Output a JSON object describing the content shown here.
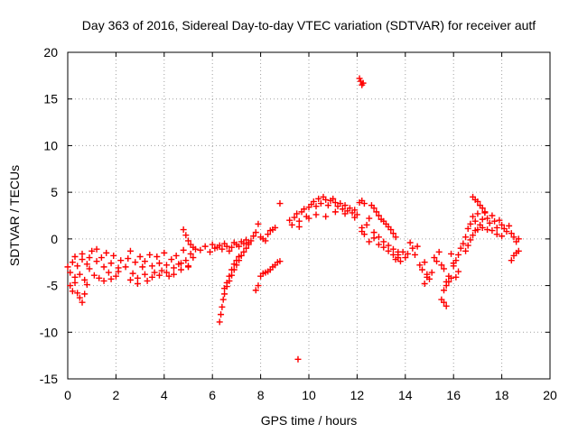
{
  "chart_data": {
    "type": "scatter",
    "title": "Day 363 of 2016, Sidereal Day-to-day VTEC variation (SDTVAR) for receiver autf",
    "xlabel": "GPS time / hours",
    "ylabel": "SDTVAR / TECUs",
    "xlim": [
      0,
      20
    ],
    "ylim": [
      -15,
      20
    ],
    "xticks": [
      0,
      2,
      4,
      6,
      8,
      10,
      12,
      14,
      16,
      18,
      20
    ],
    "yticks": [
      -15,
      -10,
      -5,
      0,
      5,
      10,
      15,
      20
    ],
    "xtick_labels": [
      "0",
      "2",
      "4",
      "6",
      "8",
      "10",
      "12",
      "14",
      "16",
      "18",
      "20"
    ],
    "ytick_labels": [
      "-15",
      "-10",
      "-5",
      "0",
      "5",
      "10",
      "15",
      "20"
    ],
    "grid": true,
    "marker": "+",
    "color": "#ff0000",
    "series": [
      {
        "name": "SDTVAR",
        "points": [
          [
            0.0,
            -3.0
          ],
          [
            0.1,
            -3.6
          ],
          [
            0.2,
            -2.5
          ],
          [
            0.3,
            -4.1
          ],
          [
            0.4,
            -2.9
          ],
          [
            0.5,
            -3.8
          ],
          [
            0.6,
            -2.2
          ],
          [
            0.7,
            -4.4
          ],
          [
            0.8,
            -2.7
          ],
          [
            0.9,
            -3.2
          ],
          [
            1.0,
            -1.3
          ],
          [
            1.1,
            -3.9
          ],
          [
            1.2,
            -2.4
          ],
          [
            1.3,
            -4.2
          ],
          [
            1.4,
            -2.0
          ],
          [
            1.5,
            -3.0
          ],
          [
            1.6,
            -1.5
          ],
          [
            1.7,
            -3.6
          ],
          [
            1.8,
            -2.6
          ],
          [
            1.9,
            -1.8
          ],
          [
            2.0,
            -4.0
          ],
          [
            2.1,
            -3.1
          ],
          [
            2.2,
            -2.3
          ],
          [
            0.1,
            -5.0
          ],
          [
            0.2,
            -5.6
          ],
          [
            0.3,
            -4.7
          ],
          [
            0.4,
            -5.8
          ],
          [
            0.5,
            -6.3
          ],
          [
            0.6,
            -6.8
          ],
          [
            0.7,
            -5.9
          ],
          [
            0.8,
            -4.9
          ],
          [
            0.3,
            -1.9
          ],
          [
            0.6,
            -1.6
          ],
          [
            0.9,
            -2.0
          ],
          [
            1.2,
            -1.1
          ],
          [
            1.5,
            -4.5
          ],
          [
            1.8,
            -4.3
          ],
          [
            2.1,
            -3.5
          ],
          [
            2.4,
            -3.0
          ],
          [
            2.5,
            -2.1
          ],
          [
            2.6,
            -1.3
          ],
          [
            2.7,
            -3.7
          ],
          [
            2.8,
            -2.5
          ],
          [
            2.9,
            -4.2
          ],
          [
            3.0,
            -1.9
          ],
          [
            3.1,
            -3.0
          ],
          [
            3.2,
            -2.4
          ],
          [
            3.3,
            -4.5
          ],
          [
            3.4,
            -1.7
          ],
          [
            3.5,
            -2.9
          ],
          [
            3.6,
            -3.6
          ],
          [
            3.7,
            -1.9
          ],
          [
            3.8,
            -2.6
          ],
          [
            3.9,
            -3.4
          ],
          [
            4.0,
            -1.5
          ],
          [
            4.1,
            -2.8
          ],
          [
            4.2,
            -4.0
          ],
          [
            4.3,
            -2.2
          ],
          [
            4.4,
            -3.1
          ],
          [
            4.5,
            -1.8
          ],
          [
            4.6,
            -2.7
          ],
          [
            4.7,
            -3.3
          ],
          [
            4.8,
            -1.2
          ],
          [
            4.9,
            -2.3
          ],
          [
            5.0,
            -2.9
          ],
          [
            5.1,
            -1.6
          ],
          [
            5.2,
            -2.0
          ],
          [
            5.3,
            -1.1
          ],
          [
            2.6,
            -4.4
          ],
          [
            2.9,
            -4.8
          ],
          [
            3.2,
            -3.8
          ],
          [
            3.5,
            -4.1
          ],
          [
            3.8,
            -3.9
          ],
          [
            4.1,
            -3.6
          ],
          [
            4.4,
            -3.8
          ],
          [
            4.7,
            -2.6
          ],
          [
            5.0,
            -3.0
          ],
          [
            4.8,
            1.0
          ],
          [
            4.9,
            0.4
          ],
          [
            5.0,
            -0.2
          ],
          [
            5.1,
            -0.6
          ],
          [
            5.2,
            -0.9
          ],
          [
            5.5,
            -1.2
          ],
          [
            5.7,
            -0.8
          ],
          [
            5.9,
            -1.4
          ],
          [
            6.0,
            -0.6
          ],
          [
            6.1,
            -1.0
          ],
          [
            6.2,
            -0.9
          ],
          [
            6.3,
            -0.7
          ],
          [
            6.4,
            -1.1
          ],
          [
            6.5,
            -0.5
          ],
          [
            6.6,
            -0.8
          ],
          [
            6.7,
            -1.3
          ],
          [
            6.8,
            -0.9
          ],
          [
            6.9,
            -0.4
          ],
          [
            7.0,
            -0.6
          ],
          [
            7.1,
            -0.8
          ],
          [
            7.2,
            -0.3
          ],
          [
            7.3,
            -0.5
          ],
          [
            7.4,
            -0.1
          ],
          [
            7.5,
            -0.4
          ],
          [
            7.6,
            -0.2
          ],
          [
            7.7,
            0.3
          ],
          [
            7.8,
            0.7
          ],
          [
            7.9,
            1.6
          ],
          [
            8.0,
            0.2
          ],
          [
            8.1,
            0.0
          ],
          [
            8.2,
            -0.2
          ],
          [
            8.3,
            0.5
          ],
          [
            8.4,
            0.9
          ],
          [
            8.5,
            1.0
          ],
          [
            8.6,
            1.2
          ],
          [
            6.3,
            -8.9
          ],
          [
            6.35,
            -8.1
          ],
          [
            6.4,
            -7.3
          ],
          [
            6.45,
            -6.5
          ],
          [
            6.5,
            -5.9
          ],
          [
            6.6,
            -5.1
          ],
          [
            6.7,
            -4.5
          ],
          [
            6.8,
            -3.9
          ],
          [
            6.9,
            -3.3
          ],
          [
            7.0,
            -2.8
          ],
          [
            7.1,
            -2.3
          ],
          [
            7.2,
            -1.8
          ],
          [
            7.3,
            -1.4
          ],
          [
            7.4,
            -1.0
          ],
          [
            7.5,
            -0.6
          ],
          [
            6.5,
            -5.3
          ],
          [
            6.6,
            -4.7
          ],
          [
            6.7,
            -4.0
          ],
          [
            6.8,
            -3.3
          ],
          [
            6.9,
            -2.7
          ],
          [
            7.0,
            -2.3
          ],
          [
            7.1,
            -1.9
          ],
          [
            7.8,
            -5.5
          ],
          [
            7.9,
            -5.0
          ],
          [
            8.0,
            -4.0
          ],
          [
            8.1,
            -3.7
          ],
          [
            8.2,
            -3.6
          ],
          [
            8.3,
            -3.5
          ],
          [
            8.4,
            -3.3
          ],
          [
            8.5,
            -3.0
          ],
          [
            8.6,
            -2.8
          ],
          [
            8.7,
            -2.5
          ],
          [
            8.8,
            -2.4
          ],
          [
            8.8,
            3.8
          ],
          [
            9.2,
            2.0
          ],
          [
            9.3,
            1.5
          ],
          [
            9.4,
            2.3
          ],
          [
            9.5,
            2.7
          ],
          [
            9.6,
            1.9
          ],
          [
            9.7,
            2.9
          ],
          [
            9.8,
            3.2
          ],
          [
            9.9,
            2.4
          ],
          [
            10.0,
            3.4
          ],
          [
            10.1,
            3.7
          ],
          [
            10.2,
            4.0
          ],
          [
            10.3,
            3.5
          ],
          [
            10.4,
            4.3
          ],
          [
            10.5,
            3.8
          ],
          [
            10.6,
            4.5
          ],
          [
            10.7,
            4.2
          ],
          [
            10.8,
            3.6
          ],
          [
            10.9,
            4.1
          ],
          [
            11.0,
            4.3
          ],
          [
            11.1,
            3.9
          ],
          [
            11.2,
            3.5
          ],
          [
            11.3,
            3.8
          ],
          [
            11.4,
            3.2
          ],
          [
            11.5,
            3.6
          ],
          [
            11.6,
            3.0
          ],
          [
            11.7,
            3.3
          ],
          [
            11.8,
            2.8
          ],
          [
            11.9,
            3.1
          ],
          [
            12.0,
            2.6
          ],
          [
            12.1,
            3.9
          ],
          [
            12.2,
            4.1
          ],
          [
            12.3,
            3.8
          ],
          [
            12.4,
            1.5
          ],
          [
            12.5,
            2.2
          ],
          [
            12.6,
            3.6
          ],
          [
            12.7,
            3.3
          ],
          [
            12.8,
            2.9
          ],
          [
            12.9,
            2.5
          ],
          [
            13.0,
            2.1
          ],
          [
            13.1,
            1.9
          ],
          [
            13.2,
            1.6
          ],
          [
            13.3,
            1.3
          ],
          [
            13.4,
            1.0
          ],
          [
            13.5,
            0.6
          ],
          [
            13.6,
            0.2
          ],
          [
            9.6,
            1.3
          ],
          [
            10.0,
            2.2
          ],
          [
            10.3,
            2.6
          ],
          [
            10.7,
            2.4
          ],
          [
            11.1,
            2.9
          ],
          [
            11.5,
            2.7
          ],
          [
            11.9,
            2.3
          ],
          [
            12.2,
            1.2
          ],
          [
            12.2,
            0.8
          ],
          [
            12.3,
            0.5
          ],
          [
            12.5,
            -0.3
          ],
          [
            12.7,
            0.1
          ],
          [
            12.9,
            -0.6
          ],
          [
            13.1,
            -0.9
          ],
          [
            13.3,
            -1.3
          ],
          [
            13.5,
            -1.7
          ],
          [
            13.7,
            -2.0
          ],
          [
            12.7,
            0.7
          ],
          [
            12.9,
            0.2
          ],
          [
            13.1,
            -0.3
          ],
          [
            13.3,
            -0.7
          ],
          [
            13.5,
            -1.1
          ],
          [
            13.7,
            -1.4
          ],
          [
            13.6,
            -2.2
          ],
          [
            13.7,
            -1.7
          ],
          [
            13.8,
            -2.4
          ],
          [
            13.9,
            -1.4
          ],
          [
            14.0,
            -2.0
          ],
          [
            14.1,
            -1.6
          ],
          [
            14.2,
            -0.4
          ],
          [
            14.3,
            -1.0
          ],
          [
            14.4,
            -1.7
          ],
          [
            14.5,
            -0.8
          ],
          [
            14.6,
            -2.8
          ],
          [
            14.7,
            -3.3
          ],
          [
            14.8,
            -2.5
          ],
          [
            14.9,
            -3.8
          ],
          [
            15.0,
            -4.3
          ],
          [
            15.1,
            -3.6
          ],
          [
            15.2,
            -2.0
          ],
          [
            15.3,
            -2.4
          ],
          [
            15.4,
            -1.4
          ],
          [
            15.5,
            -2.8
          ],
          [
            15.6,
            -3.2
          ],
          [
            15.7,
            -4.6
          ],
          [
            15.8,
            -4.0
          ],
          [
            15.9,
            -1.6
          ],
          [
            16.0,
            -2.9
          ],
          [
            16.1,
            -2.3
          ],
          [
            16.2,
            -1.7
          ],
          [
            16.3,
            -1.0
          ],
          [
            16.4,
            -0.5
          ],
          [
            16.5,
            0.2
          ],
          [
            14.8,
            -4.8
          ],
          [
            14.9,
            -4.1
          ],
          [
            15.6,
            -5.5
          ],
          [
            15.7,
            -5.0
          ],
          [
            15.8,
            -4.6
          ],
          [
            15.9,
            -4.2
          ],
          [
            15.6,
            -6.8
          ],
          [
            15.7,
            -7.2
          ],
          [
            15.5,
            -6.5
          ],
          [
            16.6,
            1.1
          ],
          [
            16.7,
            1.6
          ],
          [
            16.8,
            2.4
          ],
          [
            16.9,
            1.9
          ],
          [
            17.0,
            2.7
          ],
          [
            17.1,
            1.5
          ],
          [
            17.2,
            2.1
          ],
          [
            17.3,
            2.9
          ],
          [
            17.4,
            2.2
          ],
          [
            17.5,
            1.7
          ],
          [
            17.6,
            2.5
          ],
          [
            17.7,
            1.9
          ],
          [
            17.8,
            1.2
          ],
          [
            17.9,
            2.0
          ],
          [
            18.0,
            1.5
          ],
          [
            18.1,
            1.1
          ],
          [
            18.2,
            0.8
          ],
          [
            18.3,
            1.4
          ],
          [
            18.4,
            0.6
          ],
          [
            18.5,
            0.2
          ],
          [
            18.6,
            -0.3
          ],
          [
            18.7,
            0.0
          ],
          [
            16.5,
            -1.3
          ],
          [
            16.6,
            -0.7
          ],
          [
            16.7,
            -0.1
          ],
          [
            16.8,
            0.4
          ],
          [
            16.9,
            0.9
          ],
          [
            17.0,
            1.0
          ],
          [
            17.2,
            1.2
          ],
          [
            17.4,
            1.0
          ],
          [
            17.6,
            0.9
          ],
          [
            17.8,
            0.5
          ],
          [
            18.0,
            0.3
          ],
          [
            16.8,
            4.5
          ],
          [
            16.9,
            4.2
          ],
          [
            17.0,
            4.0
          ],
          [
            17.1,
            3.6
          ],
          [
            17.2,
            3.3
          ],
          [
            17.3,
            2.8
          ],
          [
            18.5,
            -1.8
          ],
          [
            18.6,
            -1.5
          ],
          [
            18.7,
            -1.3
          ],
          [
            18.4,
            -2.3
          ],
          [
            16.2,
            -3.5
          ],
          [
            16.1,
            -4.1
          ],
          [
            16.0,
            -2.6
          ],
          [
            12.1,
            17.2
          ],
          [
            12.15,
            16.9
          ],
          [
            12.2,
            16.5
          ],
          [
            12.25,
            16.7
          ],
          [
            9.55,
            -12.9
          ]
        ]
      }
    ]
  }
}
